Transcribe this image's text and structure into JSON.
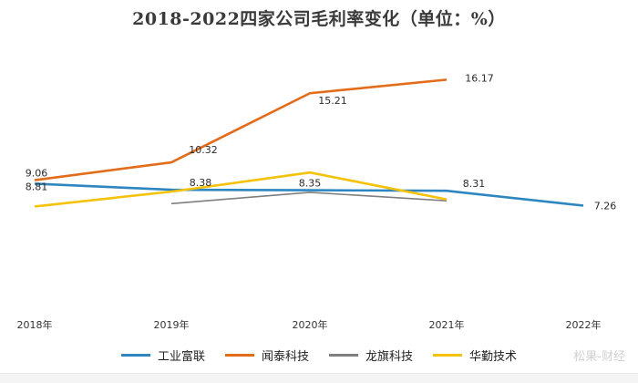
{
  "chart_data": {
    "type": "line",
    "title": "2018-2022四家公司毛利率变化（单位：%）",
    "xlabel": "",
    "ylabel": "",
    "categories": [
      "2018年",
      "2019年",
      "2020年",
      "2021年",
      "2022年"
    ],
    "ylim": [
      0,
      18
    ],
    "grid": false,
    "legend_position": "bottom",
    "series": [
      {
        "name": "工业富联",
        "color": "#2e86c1",
        "values": [
          8.81,
          8.38,
          8.35,
          8.31,
          7.26
        ],
        "labels": [
          "8.81",
          "8.38",
          "8.35",
          "8.31",
          "7.26"
        ]
      },
      {
        "name": "闻泰科技",
        "color": "#e36c1a",
        "values": [
          9.06,
          10.32,
          15.21,
          16.17,
          null
        ],
        "labels": [
          "9.06",
          "10.32",
          "15.21",
          "16.17",
          ""
        ]
      },
      {
        "name": "龙旗科技",
        "color": "#7f7f7f",
        "values": [
          null,
          7.4,
          8.2,
          7.6,
          null
        ],
        "labels": [
          "",
          "",
          "",
          "",
          ""
        ]
      },
      {
        "name": "华勤技术",
        "color": "#f5c20b",
        "values": [
          7.2,
          8.25,
          9.6,
          7.7,
          null
        ],
        "labels": [
          "",
          "",
          "",
          "",
          ""
        ]
      }
    ]
  },
  "watermark": "松果-财经"
}
